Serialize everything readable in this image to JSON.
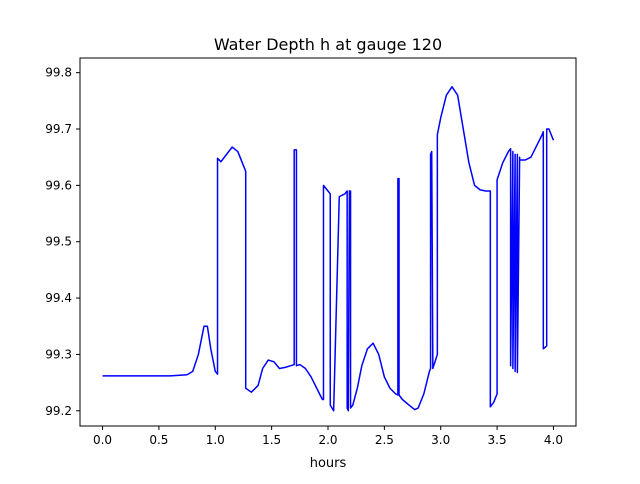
{
  "chart_data": {
    "type": "line",
    "title": "Water Depth h at gauge 120",
    "xlabel": "hours",
    "ylabel": "",
    "xlim": [
      -0.2,
      4.2
    ],
    "ylim": [
      99.173,
      99.826
    ],
    "x_ticks": [
      0.0,
      0.5,
      1.0,
      1.5,
      2.0,
      2.5,
      3.0,
      3.5,
      4.0
    ],
    "x_tick_labels": [
      "0.0",
      "0.5",
      "1.0",
      "1.5",
      "2.0",
      "2.5",
      "3.0",
      "3.5",
      "4.0"
    ],
    "y_ticks": [
      99.2,
      99.3,
      99.4,
      99.5,
      99.6,
      99.7,
      99.8
    ],
    "y_tick_labels": [
      "99.2",
      "99.3",
      "99.4",
      "99.5",
      "99.6",
      "99.7",
      "99.8"
    ],
    "grid": false,
    "legend": "none",
    "colors": {
      "line": "#0000ff",
      "axes": "#000000",
      "background": "#ffffff"
    },
    "series": [
      {
        "x": [
          0.0,
          0.3,
          0.6,
          0.75,
          0.8,
          0.85,
          0.9,
          0.93,
          0.96,
          1.0,
          1.02,
          1.02,
          1.05,
          1.1,
          1.15,
          1.2,
          1.26,
          1.27,
          1.27,
          1.32,
          1.38,
          1.42,
          1.47,
          1.52,
          1.57,
          1.62,
          1.67,
          1.7,
          1.7,
          1.72,
          1.72,
          1.75,
          1.8,
          1.85,
          1.9,
          1.95,
          1.96,
          1.96,
          2.0,
          2.02,
          2.02,
          2.05,
          2.1,
          2.15,
          2.17,
          2.17,
          2.18,
          2.19,
          2.2,
          2.2,
          2.22,
          2.26,
          2.3,
          2.35,
          2.4,
          2.45,
          2.5,
          2.55,
          2.6,
          2.62,
          2.62,
          2.63,
          2.63,
          2.66,
          2.72,
          2.77,
          2.8,
          2.85,
          2.9,
          2.91,
          2.91,
          2.92,
          2.93,
          2.97,
          2.97,
          3.0,
          3.05,
          3.1,
          3.15,
          3.2,
          3.25,
          3.3,
          3.35,
          3.4,
          3.44,
          3.44,
          3.47,
          3.5,
          3.5,
          3.55,
          3.6,
          3.62,
          3.62,
          3.64,
          3.64,
          3.66,
          3.66,
          3.68,
          3.68,
          3.7,
          3.7,
          3.75,
          3.8,
          3.85,
          3.9,
          3.91,
          3.91,
          3.94,
          3.94,
          3.96,
          4.0
        ],
        "y": [
          99.262,
          99.262,
          99.262,
          99.264,
          99.27,
          99.3,
          99.35,
          99.35,
          99.31,
          99.27,
          99.265,
          99.648,
          99.642,
          99.655,
          99.668,
          99.66,
          99.63,
          99.625,
          99.24,
          99.233,
          99.245,
          99.275,
          99.29,
          99.287,
          99.275,
          99.277,
          99.28,
          99.282,
          99.663,
          99.663,
          99.28,
          99.282,
          99.275,
          99.26,
          99.24,
          99.22,
          99.22,
          99.6,
          99.59,
          99.585,
          99.21,
          99.2,
          99.58,
          99.585,
          99.59,
          99.205,
          99.2,
          99.59,
          99.59,
          99.205,
          99.21,
          99.24,
          99.28,
          99.31,
          99.32,
          99.3,
          99.26,
          99.24,
          99.23,
          99.228,
          99.612,
          99.612,
          99.228,
          99.22,
          99.21,
          99.202,
          99.205,
          99.23,
          99.27,
          99.275,
          99.655,
          99.66,
          99.275,
          99.3,
          99.69,
          99.72,
          99.76,
          99.775,
          99.76,
          99.7,
          99.64,
          99.6,
          99.592,
          99.59,
          99.59,
          99.207,
          99.215,
          99.23,
          99.61,
          99.64,
          99.66,
          99.665,
          99.28,
          99.66,
          99.275,
          99.655,
          99.27,
          99.655,
          99.268,
          99.65,
          99.645,
          99.645,
          99.65,
          99.67,
          99.69,
          99.695,
          99.31,
          99.315,
          99.7,
          99.7,
          99.68
        ]
      }
    ]
  }
}
